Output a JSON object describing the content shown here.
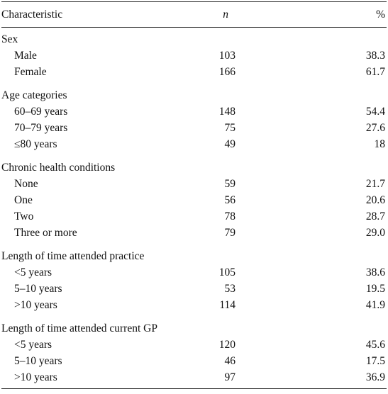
{
  "table": {
    "headers": {
      "characteristic": "Characteristic",
      "n": "n",
      "percent": "%"
    },
    "sections": [
      {
        "title": "Sex",
        "rows": [
          {
            "label": "Male",
            "n": "103",
            "percent": "38.3"
          },
          {
            "label": "Female",
            "n": "166",
            "percent": "61.7"
          }
        ]
      },
      {
        "title": "Age categories",
        "rows": [
          {
            "label": "60–69 years",
            "n": "148",
            "percent": "54.4"
          },
          {
            "label": "70–79 years",
            "n": "75",
            "percent": "27.6"
          },
          {
            "label": "≤80 years",
            "n": "49",
            "percent": "18"
          }
        ]
      },
      {
        "title": "Chronic health conditions",
        "rows": [
          {
            "label": "None",
            "n": "59",
            "percent": "21.7"
          },
          {
            "label": "One",
            "n": "56",
            "percent": "20.6"
          },
          {
            "label": "Two",
            "n": "78",
            "percent": "28.7"
          },
          {
            "label": "Three or more",
            "n": "79",
            "percent": "29.0"
          }
        ]
      },
      {
        "title": "Length of time attended practice",
        "rows": [
          {
            "label": "<5 years",
            "n": "105",
            "percent": "38.6"
          },
          {
            "label": "5–10 years",
            "n": "53",
            "percent": "19.5"
          },
          {
            "label": ">10 years",
            "n": "114",
            "percent": "41.9"
          }
        ]
      },
      {
        "title": "Length of time attended current GP",
        "rows": [
          {
            "label": "<5 years",
            "n": "120",
            "percent": "45.6"
          },
          {
            "label": "5–10 years",
            "n": "46",
            "percent": "17.5"
          },
          {
            "label": ">10 years",
            "n": "97",
            "percent": "36.9"
          }
        ]
      }
    ]
  }
}
